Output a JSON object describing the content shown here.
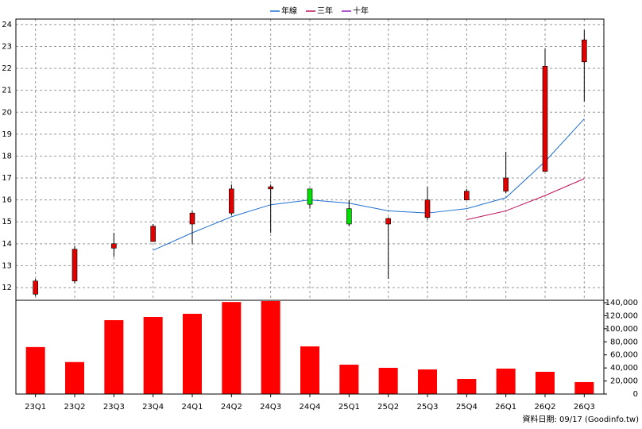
{
  "chart_data": {
    "type": "candlestick",
    "categories": [
      "23Q1",
      "23Q2",
      "23Q3",
      "23Q4",
      "24Q1",
      "24Q2",
      "24Q3",
      "24Q4",
      "25Q1",
      "25Q2",
      "25Q3",
      "25Q4",
      "26Q1",
      "26Q2",
      "26Q3"
    ],
    "ohlc": {
      "open": [
        11.7,
        12.3,
        13.8,
        14.1,
        14.9,
        15.4,
        16.5,
        16.5,
        15.6,
        14.9,
        15.2,
        16.0,
        16.4,
        17.3,
        22.3
      ],
      "high": [
        12.4,
        13.9,
        14.5,
        14.9,
        15.5,
        16.7,
        16.7,
        16.5,
        16.0,
        15.2,
        16.6,
        16.5,
        18.2,
        22.9,
        23.75
      ],
      "low": [
        11.6,
        12.2,
        13.4,
        14.1,
        14.0,
        15.3,
        14.5,
        15.6,
        14.8,
        12.4,
        15.1,
        16.0,
        16.3,
        17.3,
        20.5
      ],
      "close": [
        12.3,
        13.75,
        14.0,
        14.8,
        15.4,
        16.5,
        16.6,
        15.8,
        14.9,
        15.15,
        16.0,
        16.4,
        17.0,
        22.1,
        23.3
      ]
    },
    "up_color": "#e00000",
    "down_color": "#00e000",
    "series": [
      {
        "name": "年線",
        "color": "#1f6fd0",
        "values": [
          null,
          null,
          null,
          13.7,
          14.5,
          15.23,
          15.78,
          16.0,
          15.85,
          15.5,
          15.4,
          15.6,
          16.1,
          17.75,
          19.7
        ]
      },
      {
        "name": "三年",
        "color": "#c0105a",
        "values": [
          null,
          null,
          null,
          null,
          null,
          null,
          null,
          null,
          null,
          null,
          null,
          15.1,
          15.5,
          16.2,
          16.97
        ]
      },
      {
        "name": "十年",
        "color": "#9020c0",
        "values": [
          null,
          null,
          null,
          null,
          null,
          null,
          null,
          null,
          null,
          null,
          null,
          null,
          null,
          null,
          null
        ]
      }
    ],
    "volume": {
      "axis": "y2",
      "color": "#ff0000",
      "values": [
        72000,
        49000,
        113200,
        118100,
        123000,
        141000,
        142400,
        73000,
        45000,
        40200,
        37700,
        23100,
        39000,
        34100,
        18300
      ]
    },
    "ylim": [
      11.42,
      24.25
    ],
    "yticks": [
      12,
      13,
      14,
      15,
      16,
      17,
      18,
      19,
      20,
      21,
      22,
      23,
      24
    ],
    "y2lim": [
      0,
      143650
    ],
    "y2ticks": [
      0,
      {
        "value": 20000,
        "label": "20,000"
      },
      {
        "value": 40000,
        "label": "40,000"
      },
      {
        "value": 60000,
        "label": "60,000"
      },
      {
        "value": 80000,
        "label": "80,000"
      },
      {
        "value": 100000,
        "label": "100,000"
      },
      {
        "value": 120000,
        "label": "120,000"
      },
      {
        "value": 140000,
        "label": "140,000"
      }
    ],
    "grid": true,
    "legend": "top",
    "note": "資料日期: 09/17 (Goodinfo.tw)"
  }
}
